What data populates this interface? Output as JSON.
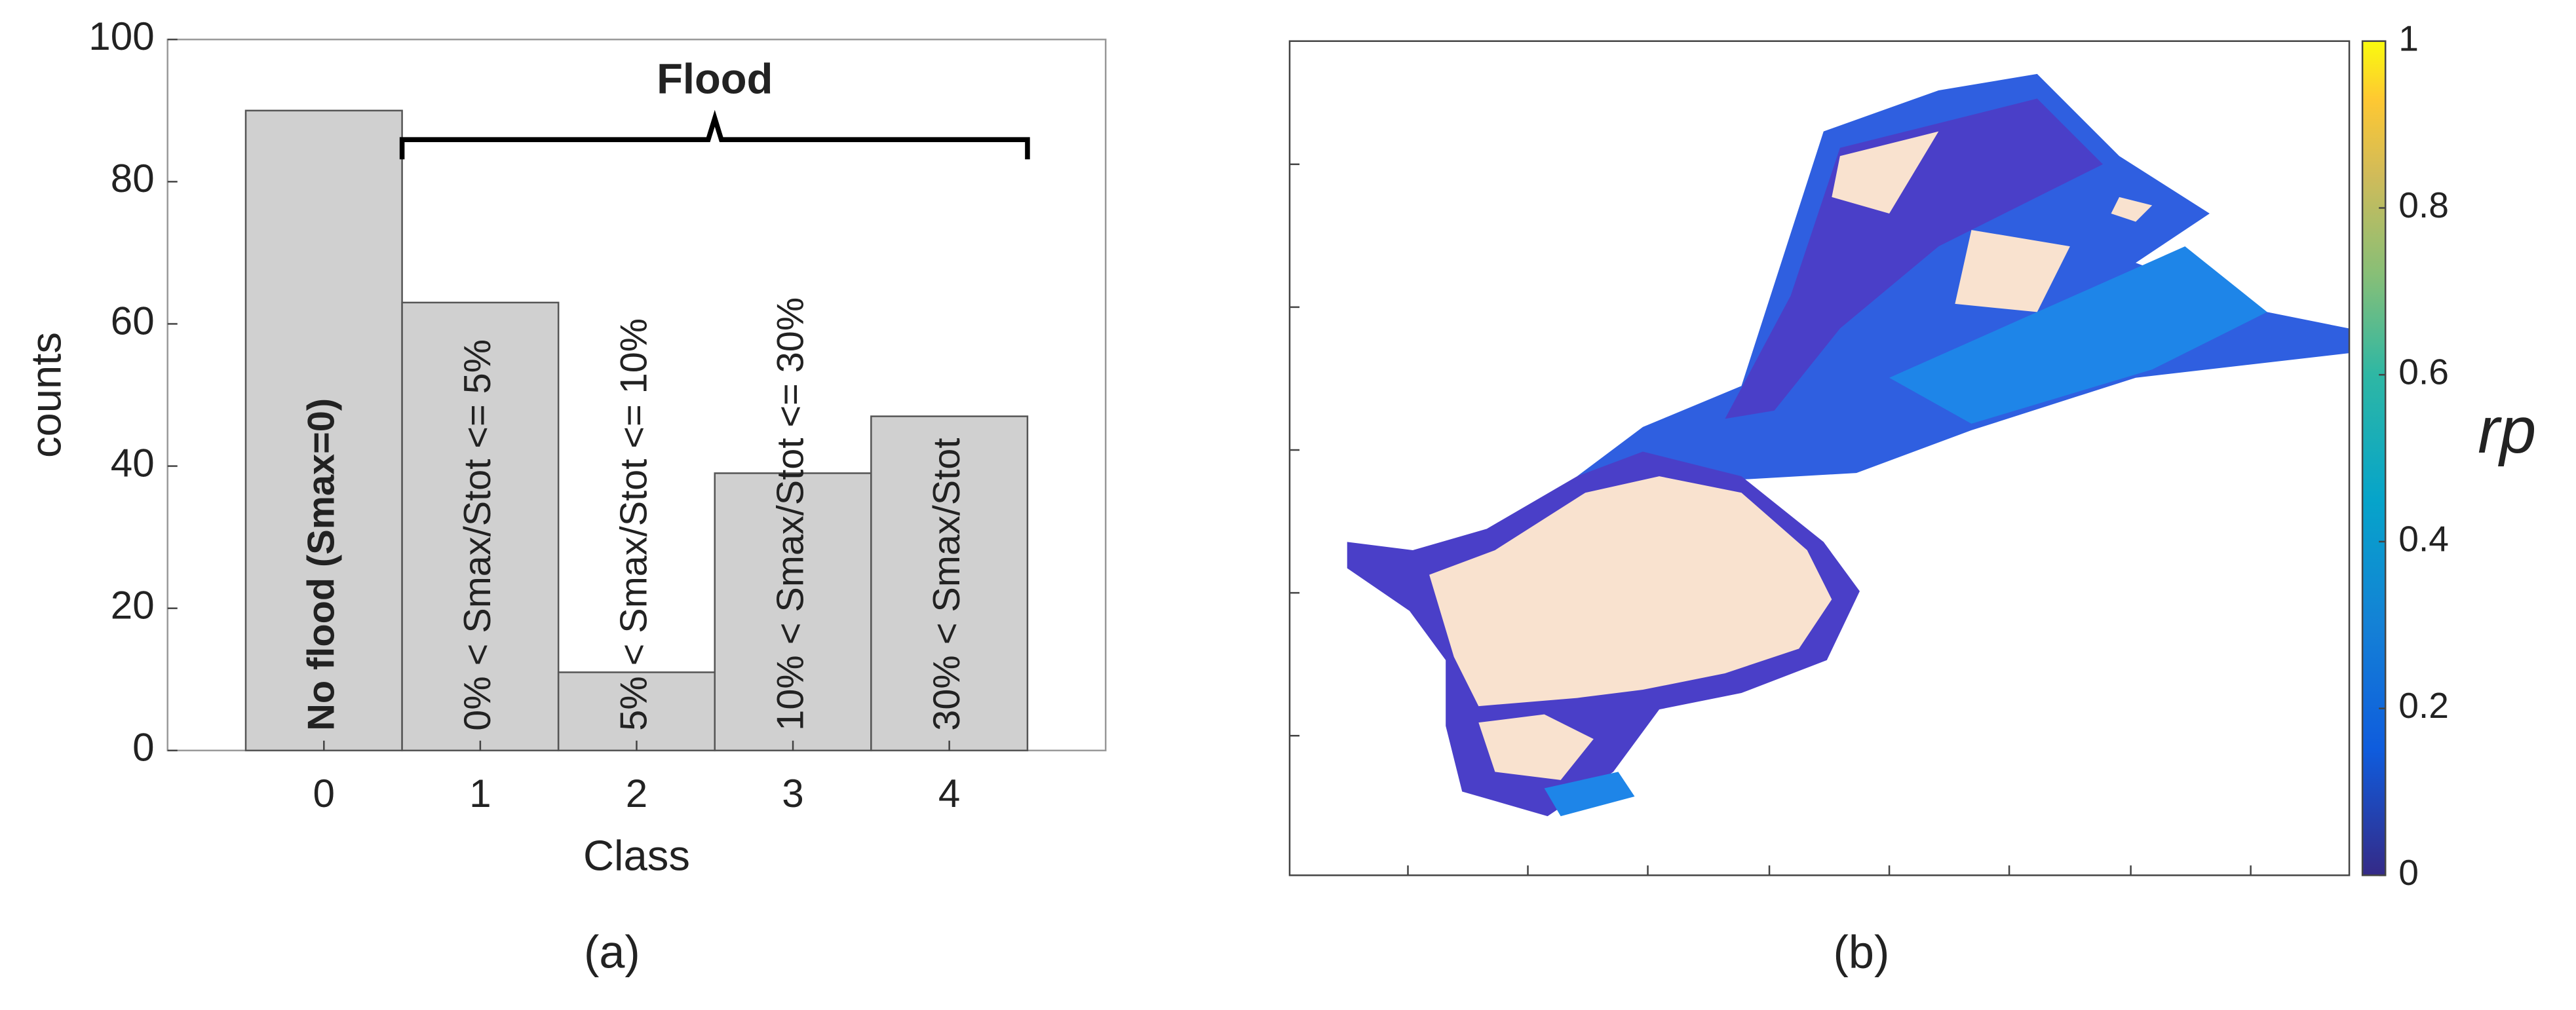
{
  "chart_data": [
    {
      "type": "bar",
      "caption": "(a)",
      "xlabel": "Class",
      "ylabel": "counts",
      "annotation": "Flood",
      "categories": [
        "0",
        "1",
        "2",
        "3",
        "4"
      ],
      "values": [
        90,
        63,
        11,
        39,
        47
      ],
      "bar_labels": [
        "No flood (Smax=0)",
        "0% < Smax/Stot <= 5%",
        "5% < Smax/Stot <= 10%",
        "10% < Smax/Stot <= 30%",
        "30% < Smax/Stot"
      ],
      "color": "#d0d0d0",
      "ylim": [
        0,
        100
      ],
      "yticks": [
        0,
        20,
        40,
        60,
        80,
        100
      ]
    },
    {
      "type": "map",
      "caption": "(b)",
      "colorbar": {
        "label": "rp",
        "lim": [
          0,
          1
        ],
        "ticks": [
          0,
          0.2,
          0.4,
          0.6,
          0.8,
          1
        ]
      }
    }
  ]
}
